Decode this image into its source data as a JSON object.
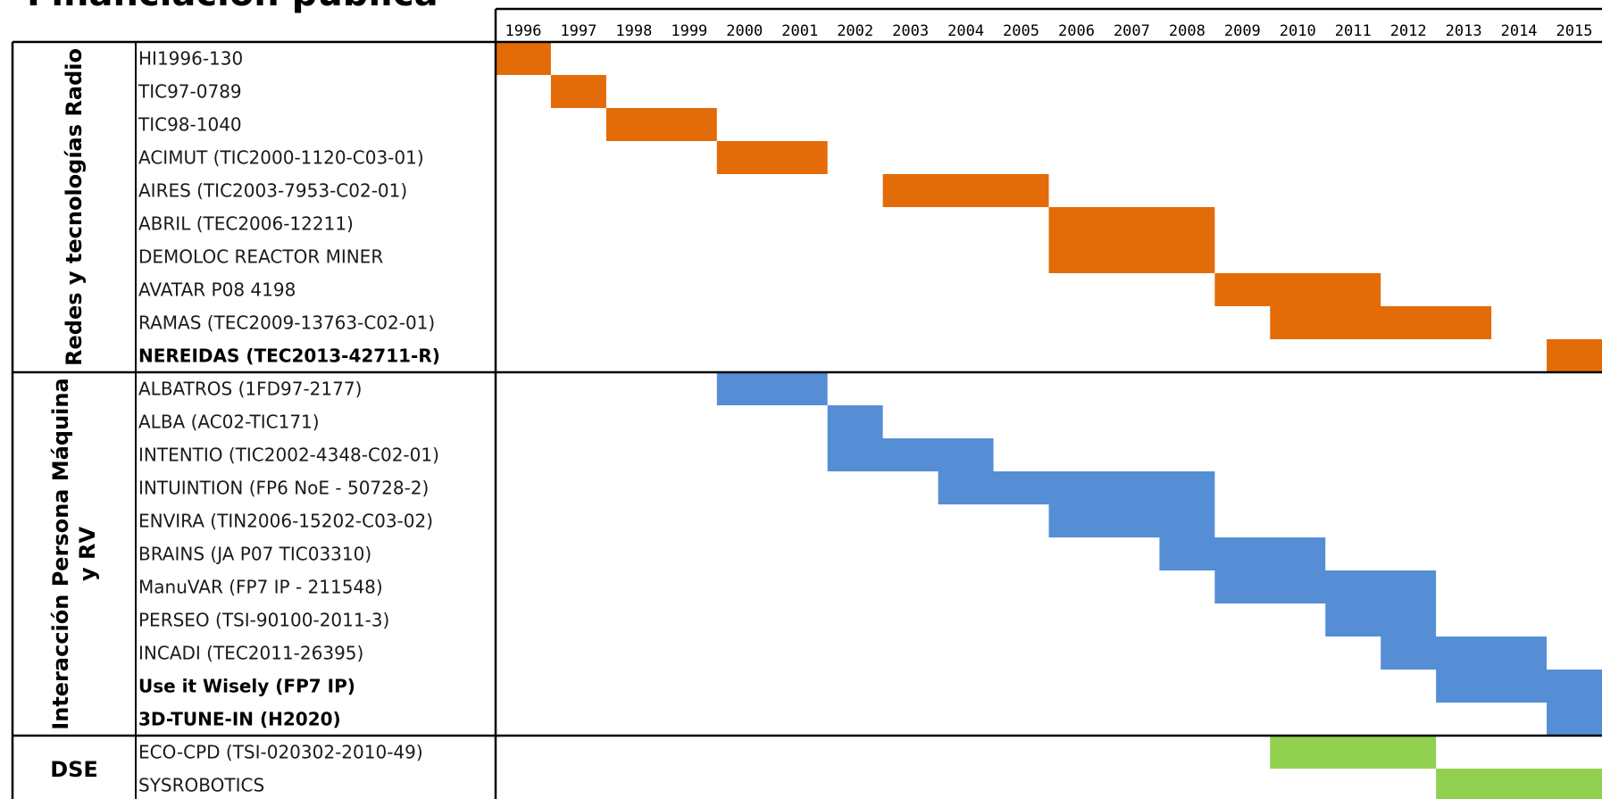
{
  "chart_data": {
    "type": "gantt",
    "title": "Financiación pública",
    "years": [
      "1996",
      "1997",
      "1998",
      "1999",
      "2000",
      "2001",
      "2002",
      "2003",
      "2004",
      "2005",
      "2006",
      "2007",
      "2008",
      "2009",
      "2010",
      "2011",
      "2012",
      "2013",
      "2014",
      "2015"
    ],
    "groups": [
      {
        "name": [
          "Redes y tecnologías Radio"
        ],
        "color": "#E36C09",
        "rows": [
          0,
          9
        ]
      },
      {
        "name": [
          "Interacción Persona Máquina",
          "y RV"
        ],
        "color": "#558ED5",
        "rows": [
          10,
          20
        ]
      },
      {
        "name": [
          "DSE"
        ],
        "color": "#92D050",
        "rows": [
          21,
          22
        ]
      }
    ],
    "projects": [
      {
        "label": "HI1996-130",
        "start": 1996,
        "end": 1996,
        "group": 0,
        "bold": false
      },
      {
        "label": "TIC97-0789",
        "start": 1997,
        "end": 1997,
        "group": 0,
        "bold": false
      },
      {
        "label": "TIC98-1040",
        "start": 1998,
        "end": 1999,
        "group": 0,
        "bold": false
      },
      {
        "label": "ACIMUT (TIC2000-1120-C03-01)",
        "start": 2000,
        "end": 2001,
        "group": 0,
        "bold": false
      },
      {
        "label": "AIRES (TIC2003-7953-C02-01)",
        "start": 2003,
        "end": 2005,
        "group": 0,
        "bold": false
      },
      {
        "label": "ABRIL (TEC2006-12211)",
        "start": 2006,
        "end": 2008,
        "group": 0,
        "bold": false
      },
      {
        "label": "DEMOLOC REACTOR MINER",
        "start": 2006,
        "end": 2008,
        "group": 0,
        "bold": false
      },
      {
        "label": "AVATAR P08 4198",
        "start": 2009,
        "end": 2011,
        "group": 0,
        "bold": false
      },
      {
        "label": "RAMAS (TEC2009-13763-C02-01)",
        "start": 2010,
        "end": 2013,
        "group": 0,
        "bold": false
      },
      {
        "label": "NEREIDAS (TEC2013-42711-R)",
        "start": 2015,
        "end": 2015,
        "group": 0,
        "bold": true
      },
      {
        "label": "ALBATROS (1FD97-2177)",
        "start": 2000,
        "end": 2001,
        "group": 1,
        "bold": false
      },
      {
        "label": "ALBA (AC02-TIC171)",
        "start": 2002,
        "end": 2002,
        "group": 1,
        "bold": false
      },
      {
        "label": "INTENTIO (TIC2002-4348-C02-01)",
        "start": 2002,
        "end": 2004,
        "group": 1,
        "bold": false
      },
      {
        "label": "INTUINTION (FP6 NoE - 50728-2)",
        "start": 2004,
        "end": 2008,
        "group": 1,
        "bold": false
      },
      {
        "label": "ENVIRA (TIN2006-15202-C03-02)",
        "start": 2006,
        "end": 2008,
        "group": 1,
        "bold": false
      },
      {
        "label": "BRAINS (JA P07 TIC03310)",
        "start": 2008,
        "end": 2010,
        "group": 1,
        "bold": false
      },
      {
        "label": "ManuVAR (FP7 IP - 211548)",
        "start": 2009,
        "end": 2012,
        "group": 1,
        "bold": false
      },
      {
        "label": "PERSEO (TSI-90100-2011-3)",
        "start": 2011,
        "end": 2012,
        "group": 1,
        "bold": false
      },
      {
        "label": "INCADI (TEC2011-26395)",
        "start": 2012,
        "end": 2014,
        "group": 1,
        "bold": false
      },
      {
        "label": "Use it Wisely (FP7 IP)",
        "start": 2013,
        "end": 2015,
        "group": 1,
        "bold": true
      },
      {
        "label": "3D-TUNE-IN (H2020)",
        "start": 2015,
        "end": 2015,
        "group": 1,
        "bold": true
      },
      {
        "label": "ECO-CPD (TSI-020302-2010-49)",
        "start": 2010,
        "end": 2012,
        "group": 2,
        "bold": false
      },
      {
        "label": "SYSROBOTICS",
        "start": 2013,
        "end": 2015,
        "group": 2,
        "bold": false
      }
    ]
  }
}
